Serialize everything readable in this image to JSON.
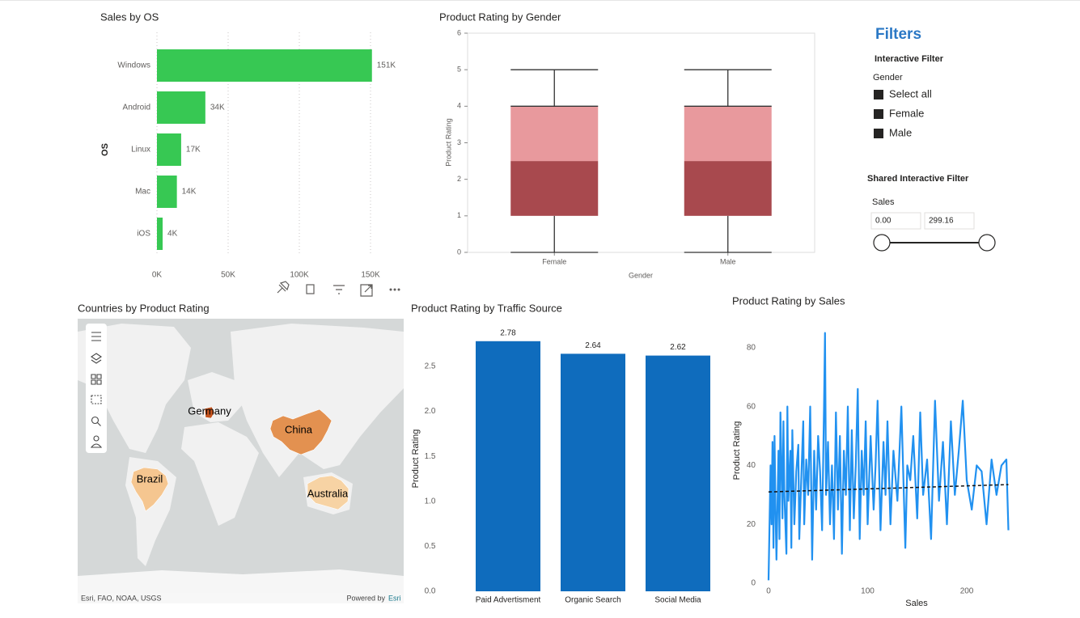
{
  "chart_data": [
    {
      "type": "bar",
      "orientation": "horizontal",
      "title": "Sales by OS",
      "y_label": "OS",
      "categories": [
        "Windows",
        "Android",
        "Linux",
        "Mac",
        "iOS"
      ],
      "values": [
        151000,
        34000,
        17000,
        14000,
        4000
      ],
      "value_labels": [
        "151K",
        "34K",
        "17K",
        "14K",
        "4K"
      ],
      "color": "#37c853",
      "xlim": [
        0,
        160000
      ],
      "xticks": [
        {
          "value": 0,
          "label": "0K"
        },
        {
          "value": 50000,
          "label": "50K"
        },
        {
          "value": 100000,
          "label": "100K"
        },
        {
          "value": 150000,
          "label": "150K"
        }
      ],
      "grid": true
    },
    {
      "type": "box",
      "title": "Product Rating by Gender",
      "x_label": "Gender",
      "y_label": "Product Rating",
      "categories": [
        "Female",
        "Male"
      ],
      "min": [
        0,
        0
      ],
      "q1": [
        1,
        1
      ],
      "median": [
        2.5,
        2.5
      ],
      "q3": [
        4,
        4
      ],
      "max": [
        5,
        5
      ],
      "lower_color": "#a8494e",
      "upper_color": "#e8999d",
      "ylim": [
        0,
        6
      ],
      "yticks": [
        0,
        1,
        2,
        3,
        4,
        5,
        6
      ]
    },
    {
      "type": "bar",
      "orientation": "vertical",
      "title": "Product Rating by Traffic Source",
      "y_label": "Product Rating",
      "categories": [
        "Paid Advertisment",
        "Organic Search",
        "Social Media"
      ],
      "values": [
        2.78,
        2.64,
        2.62
      ],
      "color": "#0f6cbd",
      "ylim": [
        0,
        2.85
      ],
      "yticks": [
        {
          "value": 0,
          "label": "0.0"
        },
        0.5,
        {
          "value": 1,
          "label": "1.0"
        },
        1.5,
        {
          "value": 2,
          "label": "2.0"
        },
        2.5
      ]
    },
    {
      "type": "line",
      "title": "Product Rating by Sales",
      "x_label": "Sales",
      "y_label": "Product Rating",
      "x": [
        0,
        2,
        3,
        4,
        5,
        6,
        7,
        8,
        10,
        11,
        12,
        14,
        15,
        16,
        18,
        19,
        20,
        22,
        23,
        24,
        26,
        28,
        30,
        31,
        33,
        35,
        36,
        38,
        40,
        42,
        44,
        46,
        48,
        50,
        52,
        54,
        56,
        57,
        58,
        60,
        62,
        64,
        66,
        68,
        70,
        72,
        74,
        76,
        78,
        80,
        82,
        84,
        86,
        88,
        90,
        92,
        94,
        96,
        98,
        100,
        103,
        106,
        108,
        110,
        113,
        116,
        118,
        120,
        123,
        126,
        130,
        134,
        138,
        140,
        143,
        146,
        150,
        153,
        156,
        160,
        164,
        168,
        172,
        176,
        180,
        184,
        188,
        192,
        196,
        200,
        205,
        210,
        215,
        220,
        225,
        230,
        235,
        240,
        242
      ],
      "series": [
        {
          "name": "Product Rating",
          "color": "#2191f0",
          "values": [
            1,
            40,
            20,
            48,
            12,
            50,
            25,
            8,
            45,
            15,
            58,
            22,
            55,
            30,
            10,
            60,
            28,
            45,
            12,
            52,
            20,
            38,
            47,
            15,
            35,
            55,
            20,
            42,
            30,
            60,
            8,
            45,
            25,
            50,
            38,
            18,
            60,
            85,
            30,
            48,
            20,
            40,
            15,
            58,
            25,
            50,
            10,
            45,
            30,
            60,
            18,
            52,
            22,
            40,
            66,
            15,
            45,
            30,
            55,
            20,
            50,
            25,
            40,
            62,
            18,
            48,
            30,
            55,
            20,
            45,
            28,
            60,
            12,
            40,
            35,
            50,
            22,
            58,
            30,
            42,
            15,
            62,
            28,
            48,
            20,
            55,
            30,
            45,
            62,
            35,
            25,
            40,
            38,
            20,
            42,
            30,
            40,
            42,
            18
          ]
        }
      ],
      "trendline": {
        "x": [
          0,
          242
        ],
        "values": [
          31,
          33.5
        ]
      },
      "xlim": [
        0,
        242
      ],
      "ylim": [
        0,
        88
      ],
      "xticks": [
        0,
        100,
        200
      ],
      "yticks": [
        0,
        20,
        40,
        60,
        80
      ]
    }
  ],
  "map": {
    "title": "Countries by Product Rating",
    "regions": [
      {
        "label": "Germany",
        "color": "#c4531d"
      },
      {
        "label": "China",
        "color": "#e39150"
      },
      {
        "label": "Brazil",
        "color": "#f5c690"
      },
      {
        "label": "Australia",
        "color": "#f7d3a4"
      }
    ],
    "attribution": "Esri, FAO, NOAA, USGS",
    "powered_by": "Powered by",
    "powered_link": "Esri"
  },
  "filters": {
    "title": "Filters",
    "interactive": {
      "title": "Interactive Filter",
      "field": "Gender",
      "options": [
        "Select all",
        "Female",
        "Male"
      ]
    },
    "shared": {
      "title": "Shared Interactive Filter",
      "field": "Sales",
      "min": "0.00",
      "max": "299.16"
    }
  }
}
